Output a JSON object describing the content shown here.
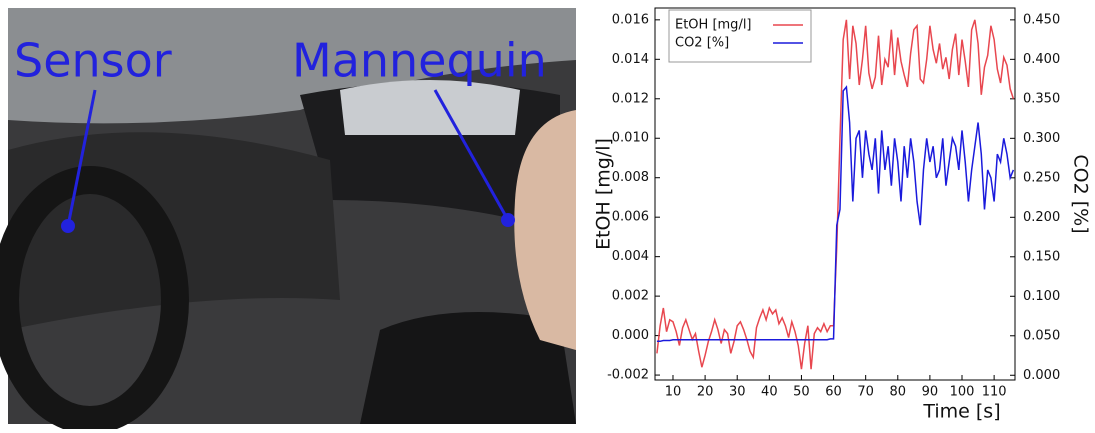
{
  "photo": {
    "labels": [
      "Sensor",
      "Mannequin"
    ]
  },
  "chart_data": {
    "type": "line",
    "x_label": "Time [s]",
    "y_label": "EtOH [mg/l]",
    "y2_label": "CO2 [%]",
    "legend": "upper left",
    "grid": false,
    "x": [
      5,
      6,
      7,
      8,
      9,
      10,
      11,
      12,
      13,
      14,
      15,
      16,
      17,
      18,
      19,
      20,
      21,
      22,
      23,
      24,
      25,
      26,
      27,
      28,
      29,
      30,
      31,
      32,
      33,
      34,
      35,
      36,
      37,
      38,
      39,
      40,
      41,
      42,
      43,
      44,
      45,
      46,
      47,
      48,
      49,
      50,
      51,
      52,
      53,
      54,
      55,
      56,
      57,
      58,
      59,
      60,
      61,
      62,
      63,
      64,
      65,
      66,
      67,
      68,
      69,
      70,
      71,
      72,
      73,
      74,
      75,
      76,
      77,
      78,
      79,
      80,
      81,
      82,
      83,
      84,
      85,
      86,
      87,
      88,
      89,
      90,
      91,
      92,
      93,
      94,
      95,
      96,
      97,
      98,
      99,
      100,
      101,
      102,
      103,
      104,
      105,
      106,
      107,
      108,
      109,
      110,
      111,
      112,
      113,
      114,
      115,
      116
    ],
    "xlim": [
      4.4,
      116.5
    ],
    "xticks": [
      10,
      20,
      30,
      40,
      50,
      60,
      70,
      80,
      90,
      100,
      110
    ],
    "ylim": [
      -0.00225,
      0.0166
    ],
    "yticks": [
      -0.002,
      {
        "value": 0,
        "label": "0.000"
      },
      0.002,
      0.004,
      0.006,
      0.008,
      {
        "value": 0.01,
        "label": "0.010"
      },
      0.012,
      0.014,
      0.016
    ],
    "y2lim": [
      -0.006,
      0.465
    ],
    "y2ticks": [
      {
        "value": 0,
        "label": "0.000"
      },
      {
        "value": 0.05,
        "label": "0.050"
      },
      {
        "value": 0.1,
        "label": "0.100"
      },
      {
        "value": 0.15,
        "label": "0.150"
      },
      {
        "value": 0.2,
        "label": "0.200"
      },
      {
        "value": 0.25,
        "label": "0.250"
      },
      {
        "value": 0.3,
        "label": "0.300"
      },
      {
        "value": 0.35,
        "label": "0.350"
      },
      {
        "value": 0.4,
        "label": "0.400"
      },
      {
        "value": 0.45,
        "label": "0.450"
      }
    ],
    "series": [
      {
        "name": "EtOH [mg/l]",
        "color": "#e8474f",
        "axis": "y",
        "values": [
          -0.0009,
          0.0005,
          0.0014,
          0.0002,
          0.0008,
          0.0007,
          0.0002,
          -0.0005,
          0.0004,
          0.0008,
          0.0003,
          -0.0002,
          0.0001,
          -0.0008,
          -0.0016,
          -0.001,
          -0.0003,
          0.0002,
          0.0008,
          0.0003,
          -0.0004,
          0.0003,
          0.0001,
          -0.0009,
          -0.0003,
          0.0005,
          0.0007,
          0.0003,
          -0.0002,
          -0.0008,
          -0.0011,
          0.0004,
          0.0009,
          0.0013,
          0.0008,
          0.0014,
          0.0011,
          0.0013,
          0.0006,
          0.0009,
          0.0005,
          -0.0001,
          0.0007,
          0.0002,
          -0.0005,
          -0.0017,
          -0.0004,
          0.0005,
          -0.0017,
          0.0001,
          0.0004,
          0.0002,
          0.0006,
          0.0002,
          0.0005,
          0.0005,
          0.0045,
          0.01,
          0.015,
          0.016,
          0.013,
          0.0157,
          0.0148,
          0.0127,
          0.014,
          0.0157,
          0.0133,
          0.0125,
          0.0131,
          0.0152,
          0.0127,
          0.014,
          0.0136,
          0.0155,
          0.0132,
          0.0151,
          0.0139,
          0.0132,
          0.0126,
          0.0143,
          0.0155,
          0.0157,
          0.013,
          0.0128,
          0.014,
          0.0157,
          0.0145,
          0.0138,
          0.0148,
          0.0135,
          0.0141,
          0.013,
          0.0145,
          0.0153,
          0.0132,
          0.015,
          0.0139,
          0.0126,
          0.0155,
          0.016,
          0.0148,
          0.0122,
          0.0136,
          0.0142,
          0.0157,
          0.015,
          0.0135,
          0.0128,
          0.0141,
          0.0137,
          0.0125,
          0.012
        ]
      },
      {
        "name": "CO2 [%]",
        "color": "#1a1adc",
        "axis": "y2",
        "values": [
          0.043,
          0.043,
          0.044,
          0.044,
          0.044,
          0.045,
          0.045,
          0.045,
          0.045,
          0.045,
          0.045,
          0.045,
          0.045,
          0.045,
          0.045,
          0.045,
          0.045,
          0.045,
          0.045,
          0.045,
          0.045,
          0.045,
          0.045,
          0.045,
          0.045,
          0.045,
          0.045,
          0.045,
          0.045,
          0.045,
          0.045,
          0.045,
          0.045,
          0.045,
          0.045,
          0.045,
          0.045,
          0.045,
          0.045,
          0.045,
          0.045,
          0.045,
          0.045,
          0.045,
          0.045,
          0.045,
          0.045,
          0.045,
          0.045,
          0.045,
          0.045,
          0.045,
          0.045,
          0.045,
          0.046,
          0.046,
          0.19,
          0.21,
          0.36,
          0.365,
          0.32,
          0.22,
          0.3,
          0.31,
          0.25,
          0.31,
          0.28,
          0.26,
          0.3,
          0.23,
          0.31,
          0.26,
          0.29,
          0.24,
          0.3,
          0.27,
          0.22,
          0.29,
          0.25,
          0.3,
          0.27,
          0.22,
          0.19,
          0.26,
          0.3,
          0.27,
          0.29,
          0.25,
          0.26,
          0.3,
          0.24,
          0.27,
          0.3,
          0.29,
          0.26,
          0.31,
          0.27,
          0.22,
          0.26,
          0.29,
          0.32,
          0.28,
          0.21,
          0.26,
          0.25,
          0.22,
          0.28,
          0.27,
          0.3,
          0.28,
          0.25,
          0.26
        ]
      }
    ]
  }
}
